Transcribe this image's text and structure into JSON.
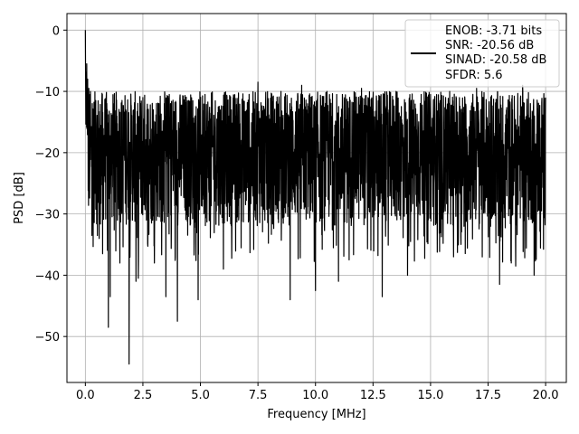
{
  "chart_data": {
    "type": "line",
    "title": "",
    "xlabel": "Frequency [MHz]",
    "ylabel": "PSD [dB]",
    "xlim": [
      -0.8,
      20.9
    ],
    "ylim": [
      -57.5,
      2.7
    ],
    "xticks": [
      0.0,
      2.5,
      5.0,
      7.5,
      10.0,
      12.5,
      15.0,
      17.5,
      20.0
    ],
    "xtick_labels": [
      "0.0",
      "2.5",
      "5.0",
      "7.5",
      "10.0",
      "12.5",
      "15.0",
      "17.5",
      "20.0"
    ],
    "yticks": [
      0,
      -10,
      -20,
      -30,
      -40,
      -50
    ],
    "ytick_labels": [
      "0",
      "−10",
      "−20",
      "−30",
      "−40",
      "−50"
    ],
    "grid": true,
    "legend_position": "top-right",
    "series_color": "#000000",
    "legend_lines": [
      "ENOB: -3.71 bits",
      "SNR: -20.56 dB",
      "SINAD: -20.58 dB",
      "SFDR: 5.6"
    ],
    "x_range": [
      0.0,
      20.0
    ],
    "typical_range_db": [
      -32,
      -10
    ],
    "series": [
      {
        "values_note_free": true,
        "x": [
          0.0,
          0.03,
          0.06,
          0.1,
          0.15,
          0.22,
          0.3,
          0.45,
          0.6,
          0.75,
          0.95,
          1.0,
          1.08,
          1.25,
          1.5,
          1.75,
          1.9,
          2.0,
          2.2,
          2.3,
          2.5,
          3.0,
          3.2,
          3.5,
          3.7,
          4.0,
          4.5,
          4.9,
          5.2,
          6.0,
          7.5,
          8.5,
          8.9,
          9.4,
          10.0,
          10.5,
          11.0,
          12.0,
          12.9,
          13.5,
          14.0,
          15.0,
          16.0,
          17.0,
          18.0,
          18.7,
          19.0,
          19.5,
          20.0
        ],
        "y": [
          0.0,
          -7.0,
          -5.5,
          -8.0,
          -9.5,
          -10.0,
          -12.0,
          -11.5,
          -34.0,
          -36.5,
          -13.0,
          -48.5,
          -43.5,
          -12.0,
          -38.0,
          -13.0,
          -54.5,
          -14.0,
          -41.0,
          -40.5,
          -11.0,
          -38.0,
          -12.0,
          -43.5,
          -12.0,
          -47.5,
          -11.5,
          -44.0,
          -10.5,
          -39.0,
          -8.5,
          -10.0,
          -44.0,
          -9.0,
          -42.5,
          -10.0,
          -41.0,
          -9.5,
          -43.5,
          -10.0,
          -40.0,
          -10.5,
          -37.0,
          -9.5,
          -41.5,
          -38.5,
          -9.0,
          -40.0,
          -11.0
        ]
      }
    ]
  }
}
